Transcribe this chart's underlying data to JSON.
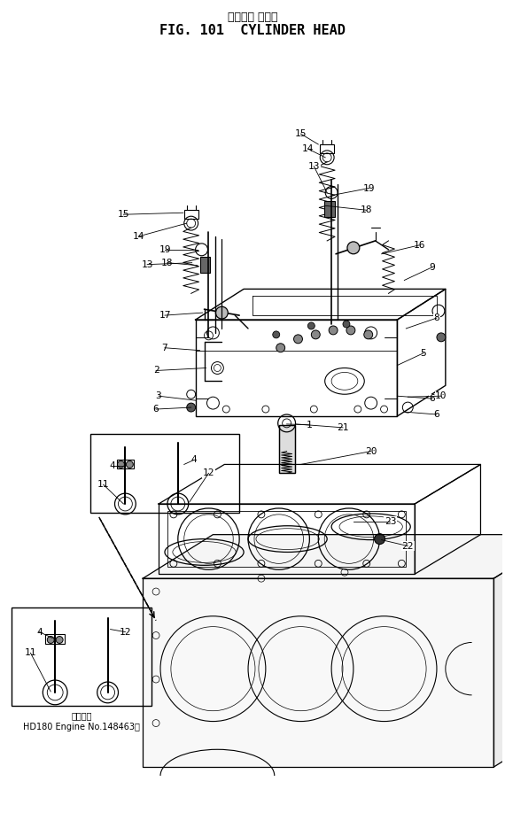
{
  "title_japanese": "シリンダ ヘッド",
  "title_english": "FIG. 101  CYLINDER HEAD",
  "background_color": "#ffffff",
  "line_color": "#000000",
  "figsize": [
    5.7,
    9.35
  ],
  "dpi": 100,
  "inset_label": "適用号等",
  "inset_engine": "HD180 Engine No.148463～"
}
